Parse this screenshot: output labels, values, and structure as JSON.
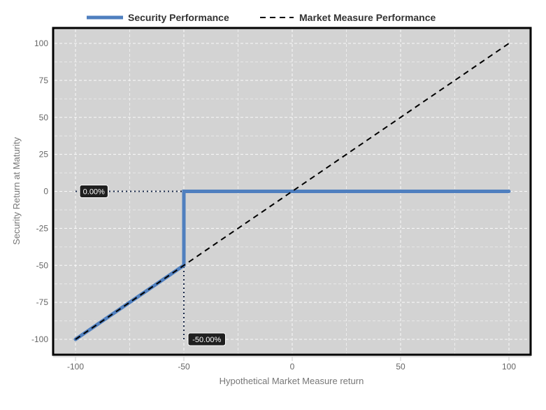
{
  "chart_data": {
    "type": "line",
    "xlabel": "Hypothetical Market Measure return",
    "ylabel": "Security Return at Maturity",
    "xlim": [
      -100,
      100
    ],
    "ylim": [
      -110,
      110
    ],
    "x_ticks": [
      -100,
      -50,
      0,
      50,
      100
    ],
    "y_ticks": [
      100,
      75,
      50,
      25,
      0,
      -25,
      -50,
      -75,
      -100
    ],
    "grid": true,
    "legend_position": "top",
    "series": [
      {
        "name": "Security Performance",
        "style": "solid",
        "color": "#4f7fbf",
        "points": [
          [
            -100,
            -100
          ],
          [
            -50,
            -50
          ],
          [
            -50,
            0
          ],
          [
            100,
            0
          ]
        ]
      },
      {
        "name": "Market Measure Performance",
        "style": "dashed",
        "color": "#000000",
        "points": [
          [
            -100,
            -100
          ],
          [
            100,
            100
          ]
        ]
      }
    ],
    "annotations": [
      {
        "label": "0.00%",
        "x": -100,
        "y": 0,
        "guide_to": [
          -50,
          0
        ]
      },
      {
        "label": "-50.00%",
        "x": -50,
        "y": -100,
        "guide_to": [
          -50,
          -50
        ]
      }
    ]
  }
}
